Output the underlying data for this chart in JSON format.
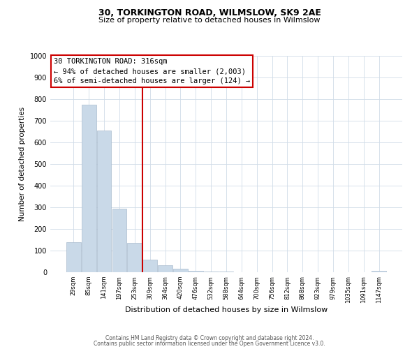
{
  "title": "30, TORKINGTON ROAD, WILMSLOW, SK9 2AE",
  "subtitle": "Size of property relative to detached houses in Wilmslow",
  "xlabel": "Distribution of detached houses by size in Wilmslow",
  "ylabel": "Number of detached properties",
  "bar_labels": [
    "29sqm",
    "85sqm",
    "141sqm",
    "197sqm",
    "253sqm",
    "309sqm",
    "364sqm",
    "420sqm",
    "476sqm",
    "532sqm",
    "588sqm",
    "644sqm",
    "700sqm",
    "756sqm",
    "812sqm",
    "868sqm",
    "923sqm",
    "979sqm",
    "1035sqm",
    "1091sqm",
    "1147sqm"
  ],
  "bar_values": [
    140,
    775,
    655,
    295,
    135,
    57,
    32,
    16,
    8,
    4,
    2,
    1,
    0,
    0,
    0,
    0,
    0,
    0,
    0,
    0,
    5
  ],
  "bar_color": "#c9d9e8",
  "bar_edgecolor": "#aabcce",
  "vline_x_index": 5,
  "annotation_title": "30 TORKINGTON ROAD: 316sqm",
  "annotation_line1": "← 94% of detached houses are smaller (2,003)",
  "annotation_line2": "6% of semi-detached houses are larger (124) →",
  "annotation_box_facecolor": "#ffffff",
  "annotation_box_edgecolor": "#cc0000",
  "vline_color": "#cc0000",
  "ylim": [
    0,
    1000
  ],
  "yticks": [
    0,
    100,
    200,
    300,
    400,
    500,
    600,
    700,
    800,
    900,
    1000
  ],
  "footer1": "Contains HM Land Registry data © Crown copyright and database right 2024.",
  "footer2": "Contains public sector information licensed under the Open Government Licence v3.0.",
  "bg_color": "#ffffff",
  "grid_color": "#d0dce8",
  "title_fontsize": 9,
  "subtitle_fontsize": 8,
  "xlabel_fontsize": 8,
  "ylabel_fontsize": 7.5,
  "tick_fontsize": 7,
  "xtick_fontsize": 6,
  "footer_fontsize": 5.5,
  "annot_fontsize": 7.5
}
